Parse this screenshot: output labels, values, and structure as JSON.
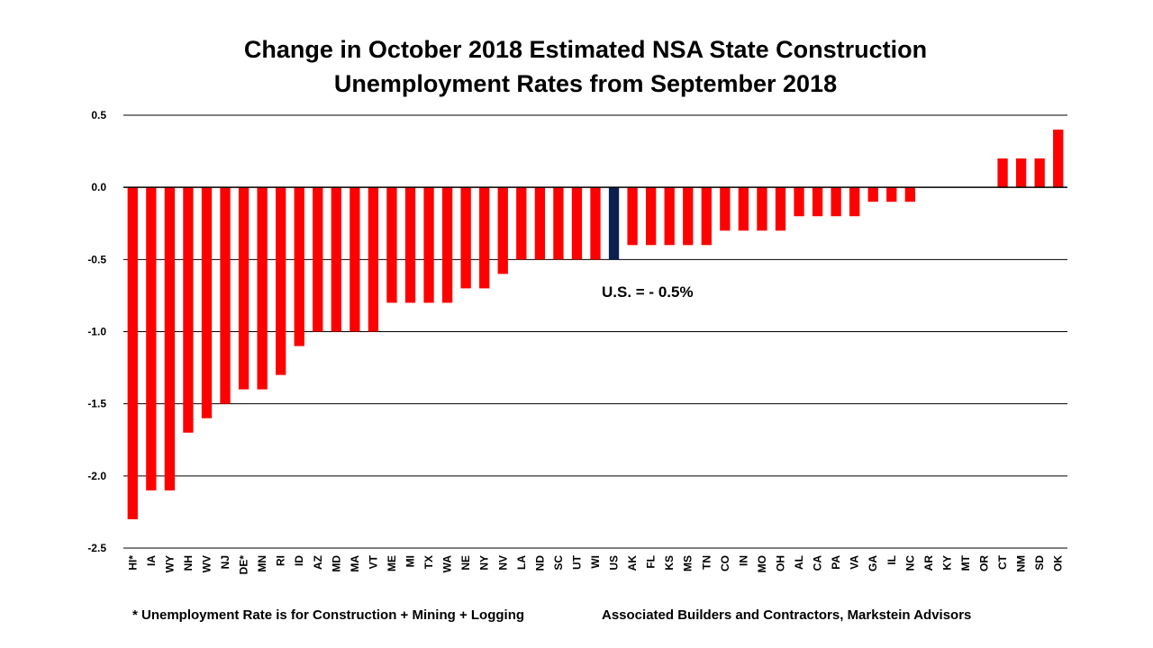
{
  "chart_data": {
    "type": "bar",
    "title_line1": "Change in October 2018 Estimated NSA State Construction",
    "title_line2": "Unemployment Rates from September 2018",
    "xlabel": "",
    "ylabel": "",
    "ylim": [
      -2.5,
      0.5
    ],
    "yticks": [
      0.5,
      0.0,
      -0.5,
      -1.0,
      -1.5,
      -2.0,
      -2.5
    ],
    "ytick_labels": [
      "0.5",
      "0.0",
      "-0.5",
      "-1.0",
      "-1.5",
      "-2.0",
      "-2.5"
    ],
    "grid": true,
    "categories": [
      "HI*",
      "IA",
      "WY",
      "NH",
      "WV",
      "NJ",
      "DE*",
      "MN",
      "RI",
      "ID",
      "AZ",
      "MD",
      "MA",
      "VT",
      "ME",
      "MI",
      "TX",
      "WA",
      "NE",
      "NY",
      "NV",
      "LA",
      "ND",
      "SC",
      "UT",
      "WI",
      "US",
      "AK",
      "FL",
      "KS",
      "MS",
      "TN",
      "CO",
      "IN",
      "MO",
      "OH",
      "AL",
      "CA",
      "PA",
      "VA",
      "GA",
      "IL",
      "NC",
      "AR",
      "KY",
      "MT",
      "OR",
      "CT",
      "NM",
      "SD",
      "OK"
    ],
    "values": [
      -2.3,
      -2.1,
      -2.1,
      -1.7,
      -1.6,
      -1.5,
      -1.4,
      -1.4,
      -1.3,
      -1.1,
      -1.0,
      -1.0,
      -1.0,
      -1.0,
      -0.8,
      -0.8,
      -0.8,
      -0.8,
      -0.7,
      -0.7,
      -0.6,
      -0.5,
      -0.5,
      -0.5,
      -0.5,
      -0.5,
      -0.5,
      -0.4,
      -0.4,
      -0.4,
      -0.4,
      -0.4,
      -0.3,
      -0.3,
      -0.3,
      -0.3,
      -0.2,
      -0.2,
      -0.2,
      -0.2,
      -0.1,
      -0.1,
      -0.1,
      0.0,
      0.0,
      0.0,
      0.0,
      0.2,
      0.2,
      0.2,
      0.4
    ],
    "highlight_category": "US",
    "colors": {
      "bar": "#ff0000",
      "highlight": "#0d1f4f",
      "grid": "#000000"
    },
    "annotation": "U.S. = - 0.5%"
  },
  "footnotes": {
    "left": "* Unemployment Rate is for Construction + Mining + Logging",
    "right": "Associated Builders and Contractors, Markstein Advisors"
  }
}
